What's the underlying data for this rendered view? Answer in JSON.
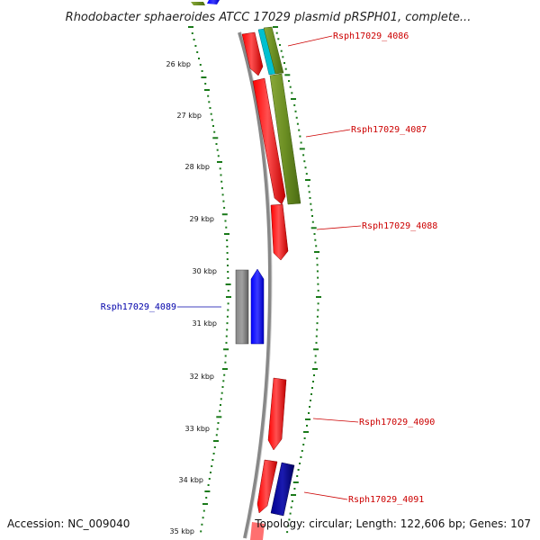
{
  "title": "Rhodobacter sphaeroides ATCC 17029 plasmid pRSPH01, complete...",
  "footer": {
    "accession": "Accession: NC_009040",
    "summary": "Topology: circular; Length: 122,606 bp; Genes: 107"
  },
  "ticks": [
    "26 kbp",
    "27 kbp",
    "28 kbp",
    "29 kbp",
    "30 kbp",
    "31 kbp",
    "32 kbp",
    "33 kbp",
    "34 kbp",
    "35 kbp"
  ],
  "genes": [
    {
      "label": "Rsph17029_4086",
      "color": "#cc0000"
    },
    {
      "label": "Rsph17029_4087",
      "color": "#cc0000"
    },
    {
      "label": "Rsph17029_4088",
      "color": "#cc0000"
    },
    {
      "label": "Rsph17029_4089",
      "color": "#0000aa"
    },
    {
      "label": "Rsph17029_4090",
      "color": "#cc0000"
    },
    {
      "label": "Rsph17029_4091",
      "color": "#cc0000"
    }
  ],
  "colors": {
    "backbone": "#888888",
    "forward_gene": "#ff0000",
    "reverse_gene": "#0000ff",
    "cds_feature": "#6b8e23",
    "cyan_feature": "#00c0d0",
    "navy_feature": "#000080",
    "gray_feature": "#777777",
    "dots": "#1a7a1a"
  }
}
